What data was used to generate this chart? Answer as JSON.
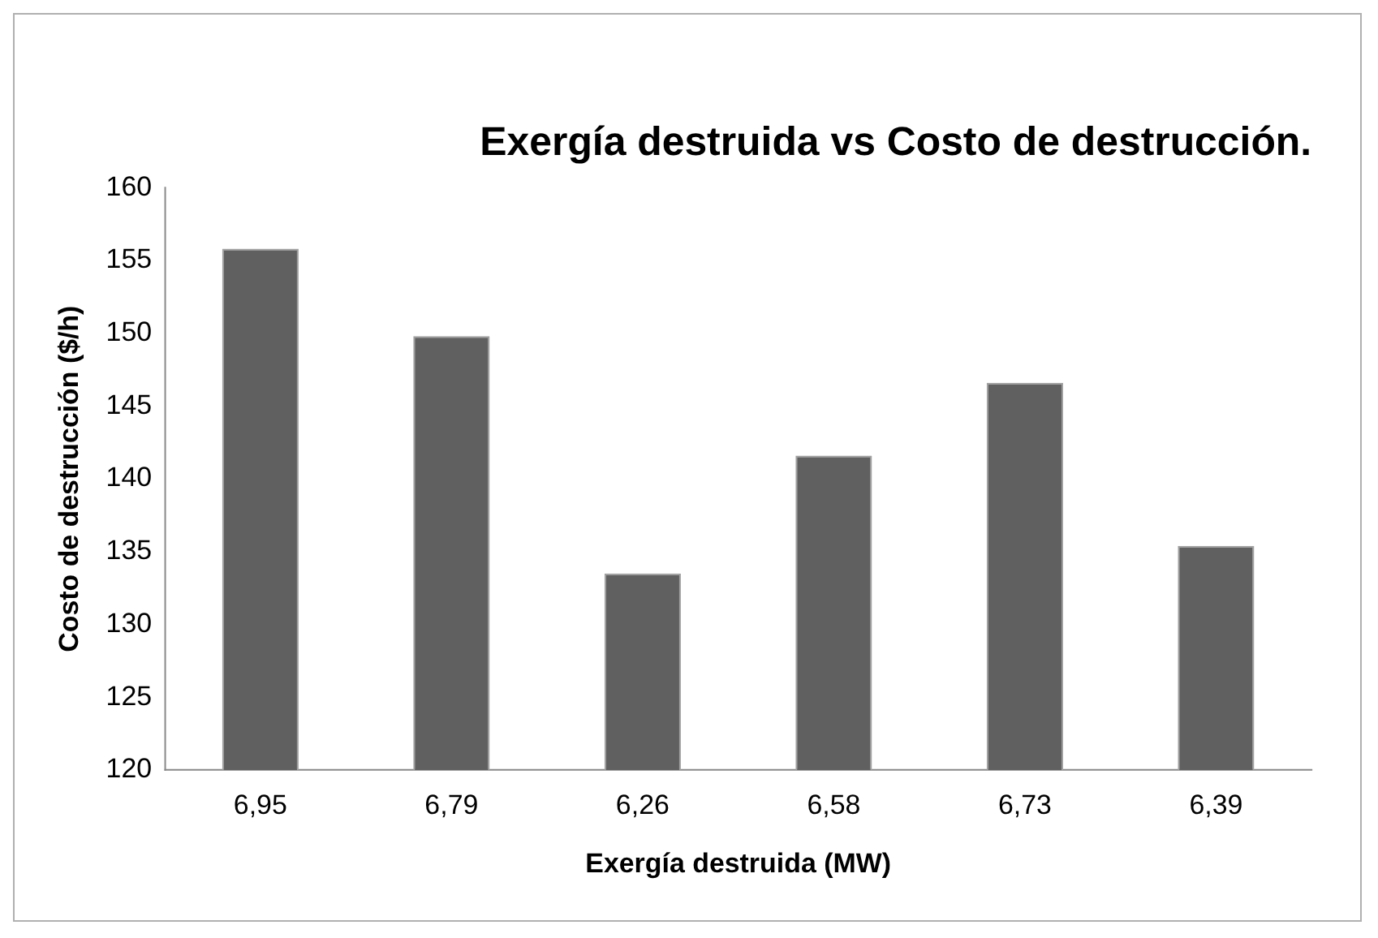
{
  "chart_data": {
    "type": "bar",
    "title": "Exergía destruida vs Costo de destrucción.",
    "xlabel": "Exergía destruida (MW)",
    "ylabel": "Costo de destrucción ($/h)",
    "categories": [
      "6,95",
      "6,79",
      "6,26",
      "6,58",
      "6,73",
      "6,39"
    ],
    "values": [
      155.8,
      149.8,
      133.5,
      141.6,
      146.6,
      135.4
    ],
    "color": "#606060",
    "ylim": [
      120,
      160
    ],
    "yticks": [
      120,
      125,
      130,
      135,
      140,
      145,
      150,
      155,
      160
    ],
    "grid": false,
    "legend": false
  }
}
